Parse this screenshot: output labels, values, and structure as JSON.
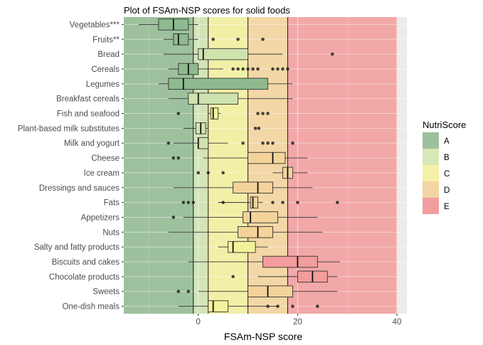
{
  "chart_data": {
    "type": "boxplot",
    "title": "Plot of FSAm-NSP scores for solid foods",
    "xlabel": "FSAm-NSP score",
    "ylabel": "",
    "xlim": [
      -15,
      42
    ],
    "xticks": [
      0,
      20,
      40
    ],
    "xticks_minor": [
      -10,
      10,
      30
    ],
    "grid": true,
    "orientation": "horizontal",
    "zones": [
      {
        "label": "A",
        "from": -15,
        "to": -1,
        "color": "#8fba8f"
      },
      {
        "label": "B",
        "from": -1,
        "to": 2,
        "color": "#cfe3ae"
      },
      {
        "label": "C",
        "from": 2,
        "to": 10,
        "color": "#f3f19b"
      },
      {
        "label": "D",
        "from": 10,
        "to": 18,
        "color": "#f4d39a"
      },
      {
        "label": "E",
        "from": 18,
        "to": 40,
        "color": "#f29c9b"
      }
    ],
    "legend": {
      "title": "NutriScore",
      "position": "right",
      "items": [
        {
          "label": "A",
          "color": "#9cc19a"
        },
        {
          "label": "B",
          "color": "#d9e6b6"
        },
        {
          "label": "C",
          "color": "#f5f1a7"
        },
        {
          "label": "D",
          "color": "#f4d5a4"
        },
        {
          "label": "E",
          "color": "#f09e9f"
        }
      ]
    },
    "categories": [
      "Vegetables***",
      "Fruits**",
      "Bread",
      "Cereals",
      "Legumes",
      "Breakfast cereals",
      "Fish and seafood",
      "Plant-based milk substitutes",
      "Milk and yogurt",
      "Cheese",
      "Ice cream",
      "Dressings and sauces",
      "Fats",
      "Appetizers",
      "Nuts",
      "Salty and fatty products",
      "Biscuits and cakes",
      "Chocolate products",
      "Sweets",
      "One-dish meals"
    ],
    "boxes": [
      {
        "min": -12,
        "q1": -8,
        "median": -5,
        "q3": -2,
        "max": 0,
        "outliers": []
      },
      {
        "min": -7,
        "q1": -5,
        "median": -4,
        "q3": -2,
        "max": 0,
        "outliers": [
          3,
          8,
          13
        ]
      },
      {
        "min": -7,
        "q1": 0,
        "median": 1,
        "q3": 10,
        "max": 17,
        "outliers": [
          27
        ]
      },
      {
        "min": -6,
        "q1": -4,
        "median": -2,
        "q3": 0,
        "max": 5,
        "outliers": [
          7,
          8,
          9,
          10,
          11,
          12,
          15,
          16,
          17,
          18
        ]
      },
      {
        "min": -8,
        "q1": -6,
        "median": -3,
        "q3": 14,
        "max": 19,
        "outliers": []
      },
      {
        "min": -6,
        "q1": -2,
        "median": 0,
        "q3": 8,
        "max": 19,
        "outliers": []
      },
      {
        "min": 2,
        "q1": 2.5,
        "median": 3,
        "q3": 4,
        "max": 4.5,
        "outliers": [
          -4,
          12,
          13,
          14
        ]
      },
      {
        "min": -3,
        "q1": -0.5,
        "median": 0.5,
        "q3": 1.5,
        "max": 2,
        "outliers": [
          11.5,
          12.2
        ]
      },
      {
        "min": -5,
        "q1": 0,
        "median": 0,
        "q3": 2,
        "max": 6,
        "outliers": [
          -6,
          9,
          13,
          14,
          15,
          19
        ]
      },
      {
        "min": 1,
        "q1": 10,
        "median": 15,
        "q3": 17.5,
        "max": 22,
        "outliers": [
          -5,
          -4
        ]
      },
      {
        "min": 15,
        "q1": 17,
        "median": 18,
        "q3": 19,
        "max": 22,
        "outliers": [
          0,
          2,
          5
        ]
      },
      {
        "min": -5,
        "q1": 7,
        "median": 12,
        "q3": 15,
        "max": 23,
        "outliers": []
      },
      {
        "min": 4,
        "q1": 10.5,
        "median": 11,
        "q3": 12,
        "max": 13,
        "outliers": [
          -3,
          -2,
          -1,
          5,
          15,
          17,
          20,
          28
        ]
      },
      {
        "min": -3,
        "q1": 9,
        "median": 10.5,
        "q3": 16,
        "max": 24,
        "outliers": [
          -5
        ]
      },
      {
        "min": -6,
        "q1": 8,
        "median": 12,
        "q3": 15,
        "max": 25,
        "outliers": []
      },
      {
        "min": 4,
        "q1": 6,
        "median": 7,
        "q3": 11.5,
        "max": 14,
        "outliers": []
      },
      {
        "min": -2,
        "q1": 13,
        "median": 20,
        "q3": 24,
        "max": 28.5,
        "outliers": []
      },
      {
        "min": 12,
        "q1": 20,
        "median": 23,
        "q3": 26,
        "max": 28,
        "outliers": [
          7
        ]
      },
      {
        "min": 0,
        "q1": 10,
        "median": 14,
        "q3": 19,
        "max": 28,
        "outliers": [
          -4,
          -2
        ]
      },
      {
        "min": -4,
        "q1": 2,
        "median": 3,
        "q3": 6,
        "max": 16,
        "outliers": [
          14,
          16,
          19,
          24
        ]
      }
    ]
  }
}
